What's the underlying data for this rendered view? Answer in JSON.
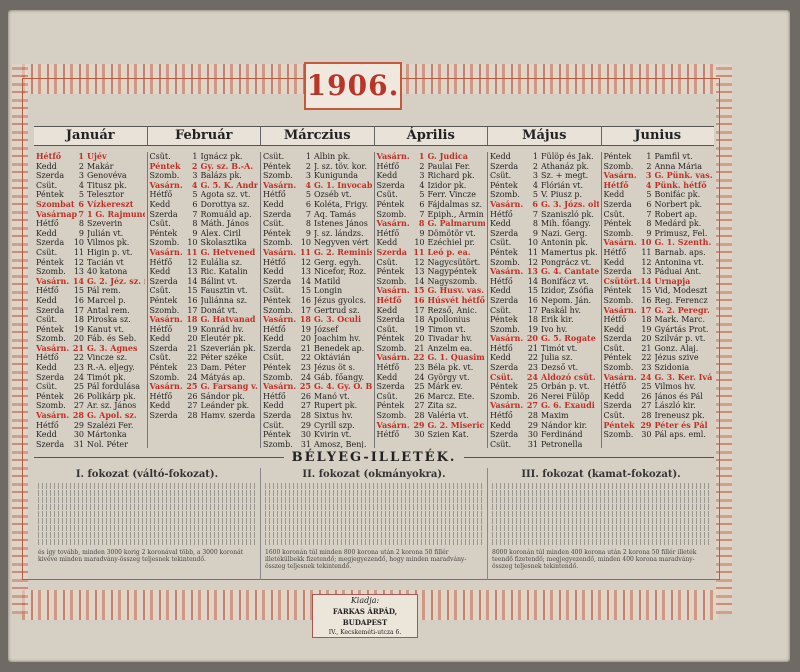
{
  "year": "1906.",
  "months": [
    {
      "name": "Január",
      "days": [
        [
          "Hétfő",
          "1",
          "Újév",
          1
        ],
        [
          "Kedd",
          "2",
          "Makár",
          0
        ],
        [
          "Szerda",
          "3",
          "Genovéva",
          0
        ],
        [
          "Csüt.",
          "4",
          "Titusz pk.",
          0
        ],
        [
          "Péntek",
          "5",
          "Telesztor",
          0
        ],
        [
          "Szombat",
          "6",
          "Vízkereszt",
          1
        ],
        [
          "Vasárnap",
          "7",
          "1 G. Rajmund",
          1
        ],
        [
          "Hétfő",
          "8",
          "Szeverin",
          0
        ],
        [
          "Kedd",
          "9",
          "Julián vt.",
          0
        ],
        [
          "Szerda",
          "10",
          "Vilmos pk.",
          0
        ],
        [
          "Csüt.",
          "11",
          "Higin p. vt.",
          0
        ],
        [
          "Péntek",
          "12",
          "Tacián vt",
          0
        ],
        [
          "Szomb.",
          "13",
          "40 katona",
          0
        ],
        [
          "Vasárn.",
          "14",
          "G. 2. Jéz. sz. n.",
          1
        ],
        [
          "Hétfő",
          "15",
          "Pál rem.",
          0
        ],
        [
          "Kedd",
          "16",
          "Marcel p.",
          0
        ],
        [
          "Szerda",
          "17",
          "Antal rem.",
          0
        ],
        [
          "Csüt.",
          "18",
          "Piroska sz.",
          0
        ],
        [
          "Péntek",
          "19",
          "Kanut vt.",
          0
        ],
        [
          "Szomb.",
          "20",
          "Fáb. és Seb.",
          0
        ],
        [
          "Vasárn.",
          "21",
          "G. 3. Ágnes",
          1
        ],
        [
          "Hétfő",
          "22",
          "Vincze sz.",
          0
        ],
        [
          "Kedd",
          "23",
          "R.-A. eljegy.",
          0
        ],
        [
          "Szerda",
          "24",
          "Timót pk.",
          0
        ],
        [
          "Csüt.",
          "25",
          "Pál fordulása",
          0
        ],
        [
          "Péntek",
          "26",
          "Polikárp pk.",
          0
        ],
        [
          "Szomb.",
          "27",
          "Ar. sz. János",
          0
        ],
        [
          "Vasárn.",
          "28",
          "G. Apol. sz.",
          1
        ],
        [
          "Hétfő",
          "29",
          "Szalézi Fer.",
          0
        ],
        [
          "Kedd",
          "30",
          "Mártonka",
          0
        ],
        [
          "Szerda",
          "31",
          "Nol. Péter",
          0
        ]
      ]
    },
    {
      "name": "Február",
      "days": [
        [
          "Csüt.",
          "1",
          "Ignácz pk.",
          0
        ],
        [
          "Péntek",
          "2",
          "Gy. sz. B.-A.",
          1
        ],
        [
          "Szomb.",
          "3",
          "Balázs pk.",
          0
        ],
        [
          "Vasárn.",
          "4",
          "G. 5. K. Andr.",
          1
        ],
        [
          "Hétfő",
          "5",
          "Agota sz. vt.",
          0
        ],
        [
          "Kedd",
          "6",
          "Dorottya sz.",
          0
        ],
        [
          "Szerda",
          "7",
          "Romuáld ap.",
          0
        ],
        [
          "Csüt.",
          "8",
          "Máth. János",
          0
        ],
        [
          "Péntek",
          "9",
          "Alex. Ciril",
          0
        ],
        [
          "Szomb.",
          "10",
          "Skolasztika",
          0
        ],
        [
          "Vasárn.",
          "11",
          "G. Hetvened v.",
          1
        ],
        [
          "Hétfő",
          "12",
          "Eulália sz.",
          0
        ],
        [
          "Kedd",
          "13",
          "Ric. Katalin",
          0
        ],
        [
          "Szerda",
          "14",
          "Bálint vt.",
          0
        ],
        [
          "Csüt.",
          "15",
          "Fausztin vt.",
          0
        ],
        [
          "Péntek",
          "16",
          "Juliánna sz.",
          0
        ],
        [
          "Szomb.",
          "17",
          "Donát vt.",
          0
        ],
        [
          "Vasárn.",
          "18",
          "G. Hatvanad v.",
          1
        ],
        [
          "Hétfő",
          "19",
          "Konrád hv.",
          0
        ],
        [
          "Kedd",
          "20",
          "Eleutér pk.",
          0
        ],
        [
          "Szerda",
          "21",
          "Szeverián pk.",
          0
        ],
        [
          "Csüt.",
          "22",
          "Péter széke",
          0
        ],
        [
          "Péntek",
          "23",
          "Dam. Péter",
          0
        ],
        [
          "Szomb.",
          "24",
          "Mátyás ap.",
          0
        ],
        [
          "Vasárn.",
          "25",
          "G. Farsang v.",
          1
        ],
        [
          "Hétfő",
          "26",
          "Sándor pk.",
          0
        ],
        [
          "Kedd",
          "27",
          "Leánder pk.",
          0
        ],
        [
          "Szerda",
          "28",
          "Hamv. szerda",
          0
        ]
      ]
    },
    {
      "name": "Márczius",
      "days": [
        [
          "Csüt.",
          "1",
          "Albin pk.",
          0
        ],
        [
          "Péntek",
          "2",
          "J. sz. töv. kor.",
          0
        ],
        [
          "Szomb.",
          "3",
          "Kunigunda",
          0
        ],
        [
          "Vasárn.",
          "4",
          "G. 1. Invocabit",
          1
        ],
        [
          "Hétfő",
          "5",
          "Özséb vt.",
          0
        ],
        [
          "Kedd",
          "6",
          "Koléta, Frigy.",
          0
        ],
        [
          "Szerda",
          "7",
          "Aq. Tamás",
          0
        ],
        [
          "Csüt.",
          "8",
          "Istenes János",
          0
        ],
        [
          "Péntek",
          "9",
          "J. sz. lándzs.",
          0
        ],
        [
          "Szomb.",
          "10",
          "Negyven vért",
          0
        ],
        [
          "Vasárn.",
          "11",
          "G. 2. Reminisc.",
          1
        ],
        [
          "Hétfő",
          "12",
          "Gerg. egyh.",
          0
        ],
        [
          "Kedd",
          "13",
          "Nicefor, Roz.",
          0
        ],
        [
          "Szerda",
          "14",
          "Matild",
          0
        ],
        [
          "Csüt.",
          "15",
          "Longin",
          0
        ],
        [
          "Péntek",
          "16",
          "Jézus gyolcs.",
          0
        ],
        [
          "Szomb.",
          "17",
          "Gertrud sz.",
          0
        ],
        [
          "Vasárn.",
          "18",
          "G. 3. Oculi",
          1
        ],
        [
          "Hétfő",
          "19",
          "József",
          0
        ],
        [
          "Kedd",
          "20",
          "Joachim hv.",
          0
        ],
        [
          "Szerda",
          "21",
          "Benedek ap.",
          0
        ],
        [
          "Csüt.",
          "22",
          "Oktávián",
          0
        ],
        [
          "Péntek",
          "23",
          "Jézus öt s.",
          0
        ],
        [
          "Szomb.",
          "24",
          "Gáb. főangy.",
          0
        ],
        [
          "Vasárn.",
          "25",
          "G. 4. Gy. O. B. A.",
          1
        ],
        [
          "Hétfő",
          "26",
          "Manó vt.",
          0
        ],
        [
          "Kedd",
          "27",
          "Rupert pk.",
          0
        ],
        [
          "Szerda",
          "28",
          "Sixtus hv.",
          0
        ],
        [
          "Csüt.",
          "29",
          "Cyrill szp.",
          0
        ],
        [
          "Péntek",
          "30",
          "Kvirin vt.",
          0
        ],
        [
          "Szomb.",
          "31",
          "Amosz, Benj.",
          0
        ]
      ]
    },
    {
      "name": "Április",
      "days": [
        [
          "Vasárn.",
          "1",
          "G. Judica",
          1
        ],
        [
          "Hétfő",
          "2",
          "Paulai Fer.",
          0
        ],
        [
          "Kedd",
          "3",
          "Richard pk.",
          0
        ],
        [
          "Szerda",
          "4",
          "Izidor pk.",
          0
        ],
        [
          "Csüt.",
          "5",
          "Ferr. Vincze",
          0
        ],
        [
          "Péntek",
          "6",
          "Fájdalmas sz.",
          0
        ],
        [
          "Szomb.",
          "7",
          "Epiph., Ármin",
          0
        ],
        [
          "Vasárn.",
          "8",
          "G. Palmarum",
          1
        ],
        [
          "Hétfő",
          "9",
          "Dömötör vt.",
          0
        ],
        [
          "Kedd",
          "10",
          "Ezéchiel pr.",
          0
        ],
        [
          "Szerda",
          "11",
          "Leó p. ea.",
          1
        ],
        [
          "Csüt.",
          "12",
          "Nagycsütört.",
          0
        ],
        [
          "Péntek",
          "13",
          "Nagypéntek",
          0
        ],
        [
          "Szomb.",
          "14",
          "Nagyszomb.",
          0
        ],
        [
          "Vasárn.",
          "15",
          "G. Husv. vas.",
          1
        ],
        [
          "Hétfő",
          "16",
          "Húsvét hétfő",
          1
        ],
        [
          "Kedd",
          "17",
          "Rezső, Anic.",
          0
        ],
        [
          "Szerda",
          "18",
          "Apollonius",
          0
        ],
        [
          "Csüt.",
          "19",
          "Timon vt.",
          0
        ],
        [
          "Péntek",
          "20",
          "Tivadar hv.",
          0
        ],
        [
          "Szomb.",
          "21",
          "Anzelm ea.",
          0
        ],
        [
          "Vasárn.",
          "22",
          "G. 1. Quasim.",
          1
        ],
        [
          "Hétfő",
          "23",
          "Béla pk. vt.",
          0
        ],
        [
          "Kedd",
          "24",
          "György vt.",
          0
        ],
        [
          "Szerda",
          "25",
          "Márk ev.",
          0
        ],
        [
          "Csüt.",
          "26",
          "Marcz. Ete.",
          0
        ],
        [
          "Péntek",
          "27",
          "Zita sz.",
          0
        ],
        [
          "Szomb.",
          "28",
          "Valéria vt.",
          0
        ],
        [
          "Vasárn.",
          "29",
          "G. 2. Miseric.",
          1
        ],
        [
          "Hétfő",
          "30",
          "Szien Kat.",
          0
        ]
      ]
    },
    {
      "name": "Május",
      "days": [
        [
          "Kedd",
          "1",
          "Fülöp és Jak.",
          0
        ],
        [
          "Szerda",
          "2",
          "Athanáz pk.",
          0
        ],
        [
          "Csüt.",
          "3",
          "Sz. + megt.",
          0
        ],
        [
          "Péntek",
          "4",
          "Flórián vt.",
          0
        ],
        [
          "Szomb.",
          "5",
          "V. Piusz p.",
          0
        ],
        [
          "Vasárn.",
          "6",
          "G. 3. Józs. olt.",
          1
        ],
        [
          "Hétfő",
          "7",
          "Szaniszló pk.",
          0
        ],
        [
          "Kedd",
          "8",
          "Mih. főangy.",
          0
        ],
        [
          "Szerda",
          "9",
          "Nazi. Gerg.",
          0
        ],
        [
          "Csüt.",
          "10",
          "Antonin pk.",
          0
        ],
        [
          "Péntek",
          "11",
          "Mamertus pk.",
          0
        ],
        [
          "Szomb.",
          "12",
          "Pongrácz vt.",
          0
        ],
        [
          "Vasárn.",
          "13",
          "G. 4. Cantate",
          1
        ],
        [
          "Hétfő",
          "14",
          "Bonifácz vt.",
          0
        ],
        [
          "Kedd",
          "15",
          "Izidor, Zsófia",
          0
        ],
        [
          "Szerda",
          "16",
          "Nepom. Ján.",
          0
        ],
        [
          "Csüt.",
          "17",
          "Paskál hv.",
          0
        ],
        [
          "Péntek",
          "18",
          "Erik kir.",
          0
        ],
        [
          "Szomb.",
          "19",
          "Ivo hv.",
          0
        ],
        [
          "Vasárn.",
          "20",
          "G. 5. Rogate",
          1
        ],
        [
          "Hétfő",
          "21",
          "Timót vt.",
          0
        ],
        [
          "Kedd",
          "22",
          "Julia sz.",
          0
        ],
        [
          "Szerda",
          "23",
          "Dezső vt.",
          0
        ],
        [
          "Csüt.",
          "24",
          "Áldozó csüt.",
          1
        ],
        [
          "Péntek",
          "25",
          "Orbán p. vt.",
          0
        ],
        [
          "Szomb.",
          "26",
          "Nerei Fülöp",
          0
        ],
        [
          "Vasárn.",
          "27",
          "G. 6. Exaudi",
          1
        ],
        [
          "Hétfő",
          "28",
          "Maxim",
          0
        ],
        [
          "Kedd",
          "29",
          "Nándor kir.",
          0
        ],
        [
          "Szerda",
          "30",
          "Ferdinánd",
          0
        ],
        [
          "Csüt.",
          "31",
          "Petronella",
          0
        ]
      ]
    },
    {
      "name": "Junius",
      "days": [
        [
          "Péntek",
          "1",
          "Pamfil vt.",
          0
        ],
        [
          "Szomb.",
          "2",
          "Anna Mária",
          0
        ],
        [
          "Vasárn.",
          "3",
          "G. Pünk. vas.",
          1
        ],
        [
          "Hétfő",
          "4",
          "Pünk. hétfő",
          1
        ],
        [
          "Kedd",
          "5",
          "Bonifác pk.",
          0
        ],
        [
          "Szerda",
          "6",
          "Norbert pk.",
          0
        ],
        [
          "Csüt.",
          "7",
          "Robert ap.",
          0
        ],
        [
          "Péntek",
          "8",
          "Medárd pk.",
          0
        ],
        [
          "Szomb.",
          "9",
          "Primusz, Fel.",
          0
        ],
        [
          "Vasárn.",
          "10",
          "G. 1. Szenth.",
          1
        ],
        [
          "Hétfő",
          "11",
          "Barnab. aps.",
          0
        ],
        [
          "Kedd",
          "12",
          "Antonina vt.",
          0
        ],
        [
          "Szerda",
          "13",
          "Páduai Ant.",
          0
        ],
        [
          "Csütört.",
          "14",
          "Úrnapja",
          1
        ],
        [
          "Péntek",
          "15",
          "Vid, Modeszt",
          0
        ],
        [
          "Szomb.",
          "16",
          "Reg. Ferencz",
          0
        ],
        [
          "Vasárn.",
          "17",
          "G. 2. Peregr.",
          1
        ],
        [
          "Hétfő",
          "18",
          "Mark. Marc.",
          0
        ],
        [
          "Kedd",
          "19",
          "Gyártás Prot.",
          0
        ],
        [
          "Szerda",
          "20",
          "Szilvár p. vt.",
          0
        ],
        [
          "Csüt.",
          "21",
          "Gonz. Alaj.",
          0
        ],
        [
          "Péntek",
          "22",
          "Jézus szive",
          0
        ],
        [
          "Szomb.",
          "23",
          "Szidonia",
          0
        ],
        [
          "Vasárn.",
          "24",
          "G. 3. Ker. Iván",
          1
        ],
        [
          "Hétfő",
          "25",
          "Vilmos hv.",
          0
        ],
        [
          "Kedd",
          "26",
          "János és Pál",
          0
        ],
        [
          "Szerda",
          "27",
          "László kir.",
          0
        ],
        [
          "Csüt.",
          "28",
          "Ireneusz pk.",
          0
        ],
        [
          "Péntek",
          "29",
          "Péter és Pál",
          1
        ],
        [
          "Szomb.",
          "30",
          "Pál aps. eml.",
          0
        ]
      ]
    }
  ],
  "stamp_heading": "BÉLYEG-ILLETÉK.",
  "fees": [
    {
      "title": "I. fokozat (váltó-fokozat).",
      "note": "és így tovább, minden 3000 korig 2 koronával több, a 3000 koronát kivéve minden maradvány-összeg teljesnek tekintendő."
    },
    {
      "title": "II. fokozat (okmányokra).",
      "note": "1600 koronán túl minden 800 korona után 2 korona 50 fillér illetékülbekk fizetendő; megjegyezendő, hogy minden maradvány-összeg teljesnek tekintendő."
    },
    {
      "title": "III. fokozat (kamat-fokozat).",
      "note": "8000 koronán túl minden 400 korona után 2 korona 50 fillér illeték teendő fizetendő; megjegyezendő, minden 400 korona maradvány-összeg teljesnek tekintendő."
    }
  ],
  "publisher": {
    "label": "Kiadja:",
    "name": "FARKAS ÁRPÁD, BUDAPEST",
    "address": "IV., Kecskeméti-utcza 6."
  }
}
